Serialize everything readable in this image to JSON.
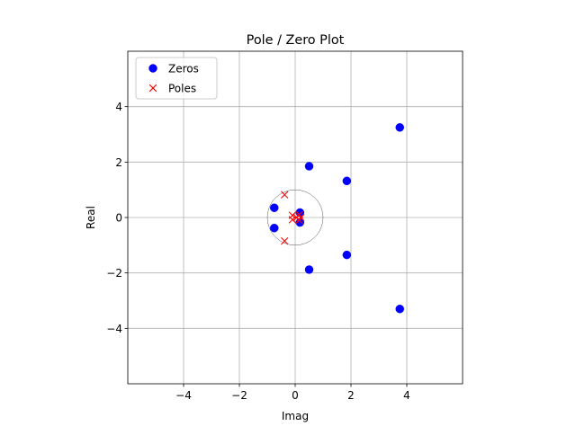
{
  "chart_data": {
    "type": "scatter",
    "title": "Pole / Zero Plot",
    "xlabel": "Imag",
    "ylabel": "Real",
    "xlim": [
      -6,
      6
    ],
    "ylim": [
      -6,
      6
    ],
    "xticks": [
      -4,
      -2,
      0,
      2,
      4
    ],
    "yticks": [
      -4,
      -2,
      0,
      2,
      4
    ],
    "xtick_labels": [
      "−4",
      "−2",
      "0",
      "2",
      "4"
    ],
    "ytick_labels": [
      "−4",
      "−2",
      "0",
      "2",
      "4"
    ],
    "grid": true,
    "unit_circle_radius": 1,
    "legend_position": "top-left",
    "series": [
      {
        "name": "Zeros",
        "marker": "circle",
        "color": "#0000ff",
        "points": [
          {
            "x": 3.75,
            "y": 3.25
          },
          {
            "x": 3.75,
            "y": -3.3
          },
          {
            "x": 1.85,
            "y": 1.32
          },
          {
            "x": 1.85,
            "y": -1.35
          },
          {
            "x": 0.5,
            "y": 1.85
          },
          {
            "x": 0.5,
            "y": -1.88
          },
          {
            "x": -0.75,
            "y": 0.35
          },
          {
            "x": -0.75,
            "y": -0.38
          },
          {
            "x": 0.17,
            "y": 0.18
          },
          {
            "x": 0.17,
            "y": -0.18
          }
        ]
      },
      {
        "name": "Poles",
        "marker": "x",
        "color": "#ff0000",
        "points": [
          {
            "x": -0.38,
            "y": 0.82
          },
          {
            "x": -0.38,
            "y": -0.85
          },
          {
            "x": -0.1,
            "y": 0.08
          },
          {
            "x": -0.1,
            "y": -0.08
          },
          {
            "x": 0.05,
            "y": 0.0
          },
          {
            "x": 0.15,
            "y": 0.1
          },
          {
            "x": 0.15,
            "y": -0.1
          },
          {
            "x": 0.2,
            "y": 0.0
          }
        ]
      }
    ]
  }
}
